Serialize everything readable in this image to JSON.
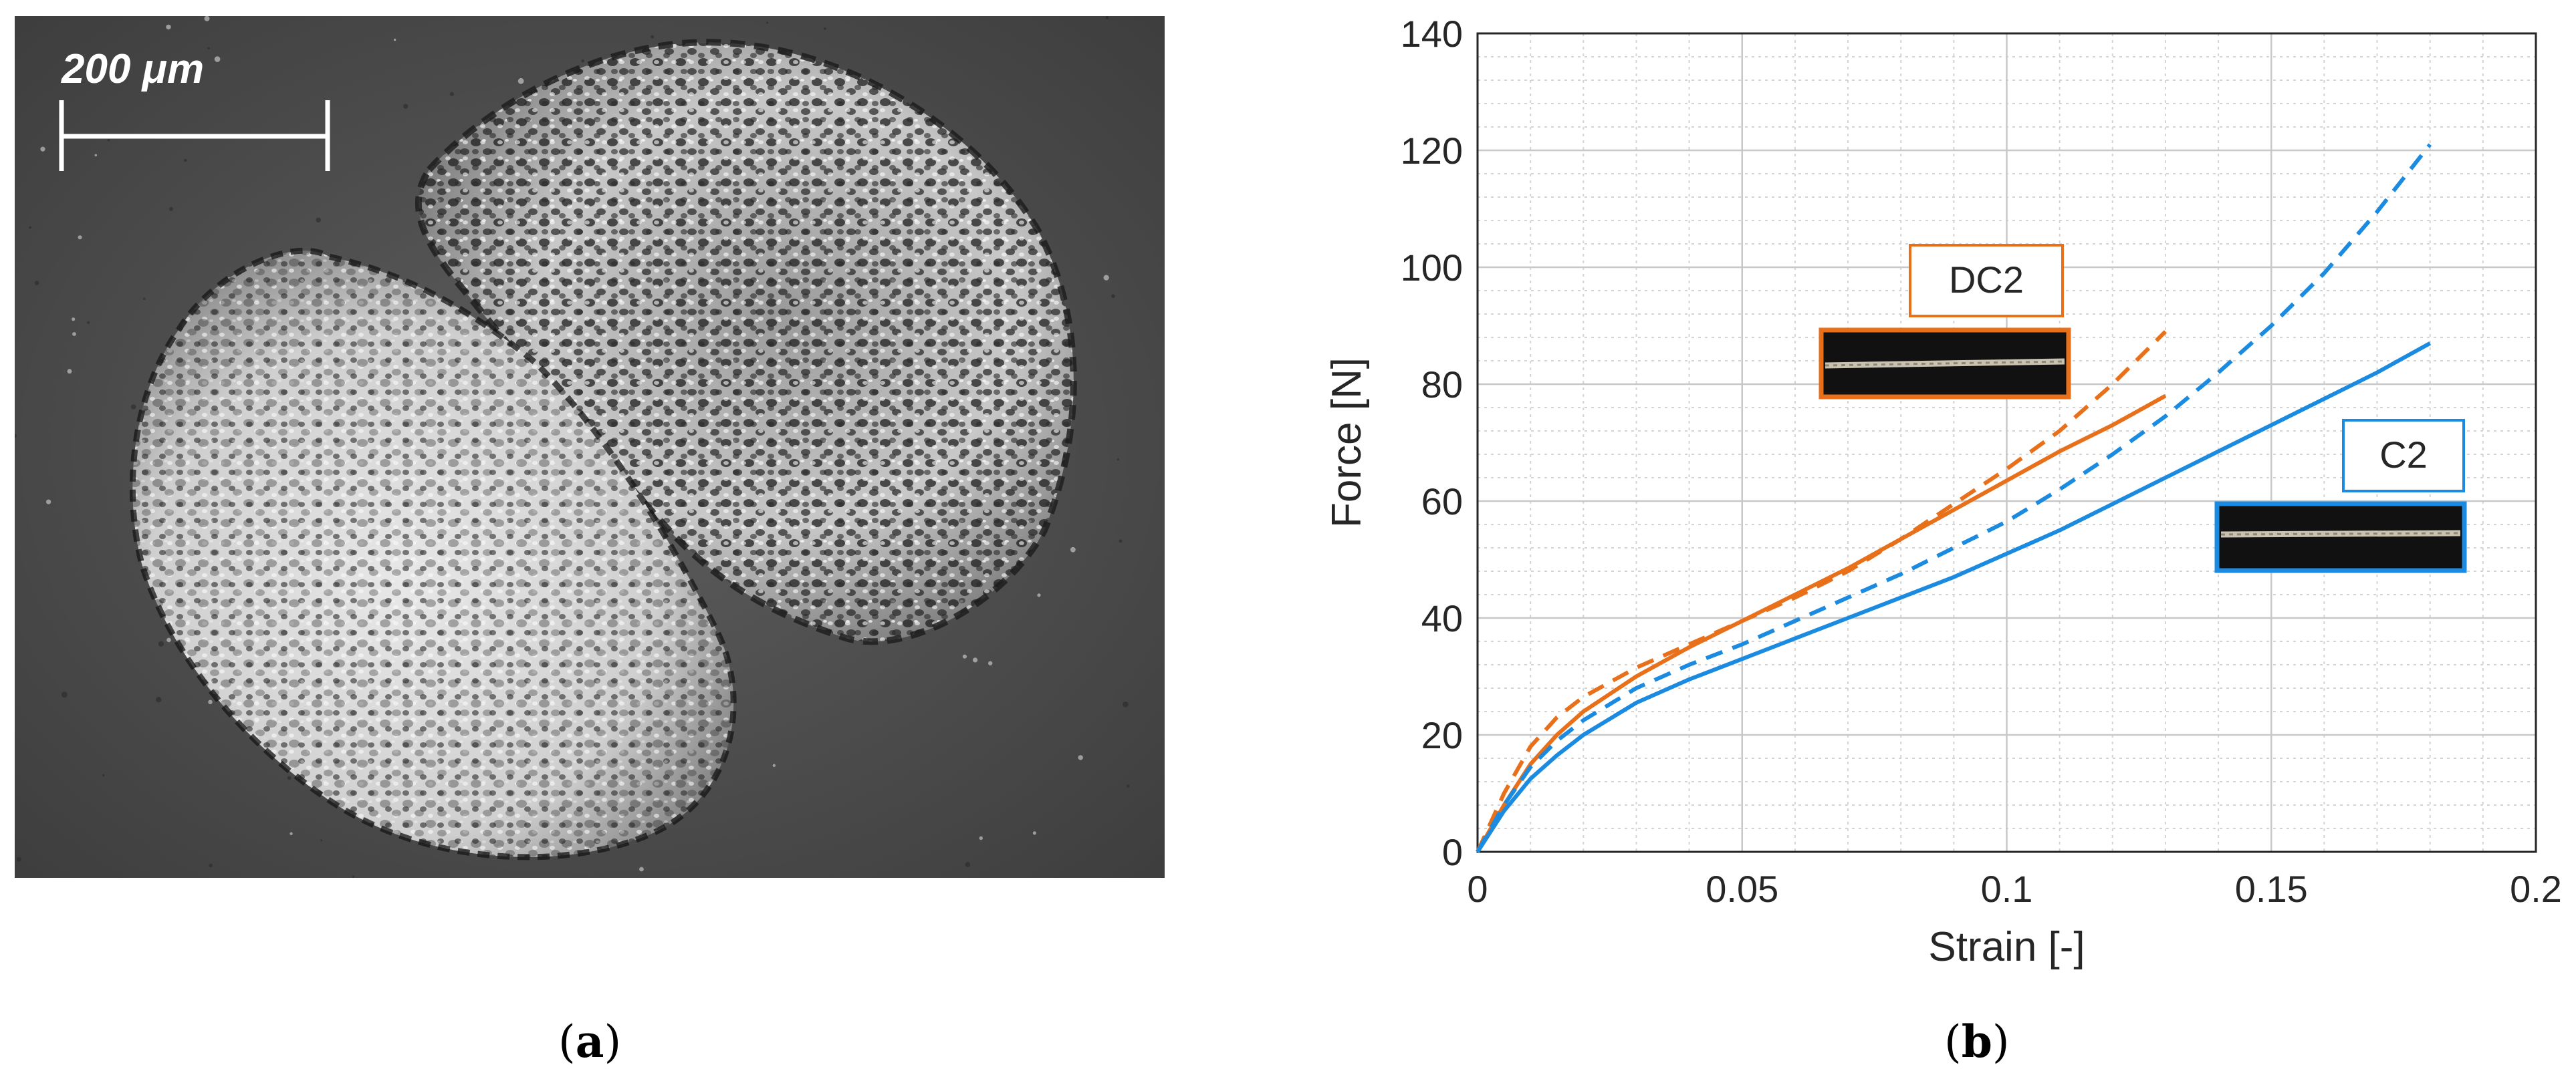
{
  "panel_a": {
    "scale_bar_label": "200 μm",
    "caption_letter": "a"
  },
  "panel_b": {
    "caption_letter": "b"
  },
  "chart_data": {
    "type": "line",
    "xlabel": "Strain [-]",
    "ylabel": "Force [N]",
    "xlim": [
      0,
      0.2
    ],
    "ylim": [
      0,
      140
    ],
    "xticks": [
      "0",
      "0.05",
      "0.1",
      "0.15",
      "0.2"
    ],
    "yticks": [
      "0",
      "20",
      "40",
      "60",
      "80",
      "100",
      "120",
      "140"
    ],
    "grid": true,
    "minor_grid": true,
    "colors": {
      "C2": "#1a8be0",
      "DC2": "#e8701a"
    },
    "annotations": [
      {
        "text": "DC2",
        "color": "#e8701a"
      },
      {
        "text": "C2",
        "color": "#1a8be0"
      }
    ],
    "series": [
      {
        "label": "DC2",
        "style": "solid",
        "color": "#e8701a",
        "x": [
          0,
          0.005,
          0.01,
          0.015,
          0.02,
          0.03,
          0.04,
          0.05,
          0.06,
          0.07,
          0.08,
          0.09,
          0.1,
          0.11,
          0.12,
          0.13
        ],
        "y": [
          0,
          8,
          15,
          20,
          24,
          30,
          35,
          39.5,
          44,
          48.5,
          53.5,
          58.5,
          63.5,
          68.5,
          73,
          78
        ]
      },
      {
        "label": "DC2",
        "style": "dashed",
        "color": "#e8701a",
        "x": [
          0,
          0.005,
          0.01,
          0.015,
          0.02,
          0.03,
          0.04,
          0.05,
          0.06,
          0.07,
          0.08,
          0.09,
          0.1,
          0.11,
          0.12,
          0.13
        ],
        "y": [
          0,
          10,
          18,
          23,
          26.5,
          31.5,
          35.5,
          39.5,
          43.5,
          48,
          53.5,
          59.5,
          65.5,
          72,
          80,
          89
        ]
      },
      {
        "label": "C2",
        "style": "solid",
        "color": "#1a8be0",
        "x": [
          0,
          0.005,
          0.01,
          0.015,
          0.02,
          0.03,
          0.04,
          0.05,
          0.06,
          0.07,
          0.08,
          0.09,
          0.1,
          0.11,
          0.12,
          0.13,
          0.14,
          0.15,
          0.16,
          0.17,
          0.18
        ],
        "y": [
          0,
          7,
          12.5,
          16.5,
          20,
          25.5,
          29.5,
          33,
          36.5,
          40,
          43.5,
          47,
          51,
          55,
          59.5,
          64,
          68.5,
          73,
          77.5,
          82,
          87
        ]
      },
      {
        "label": "C2",
        "style": "dashed",
        "color": "#1a8be0",
        "x": [
          0,
          0.005,
          0.01,
          0.015,
          0.02,
          0.03,
          0.04,
          0.05,
          0.06,
          0.07,
          0.08,
          0.09,
          0.1,
          0.11,
          0.12,
          0.13,
          0.14,
          0.15,
          0.16,
          0.17,
          0.18
        ],
        "y": [
          0,
          8,
          14.5,
          19,
          22.5,
          28,
          32,
          35.5,
          39.5,
          43.5,
          47.5,
          52,
          56.5,
          62,
          68,
          74.5,
          82,
          90,
          99,
          109.5,
          121
        ]
      }
    ]
  }
}
